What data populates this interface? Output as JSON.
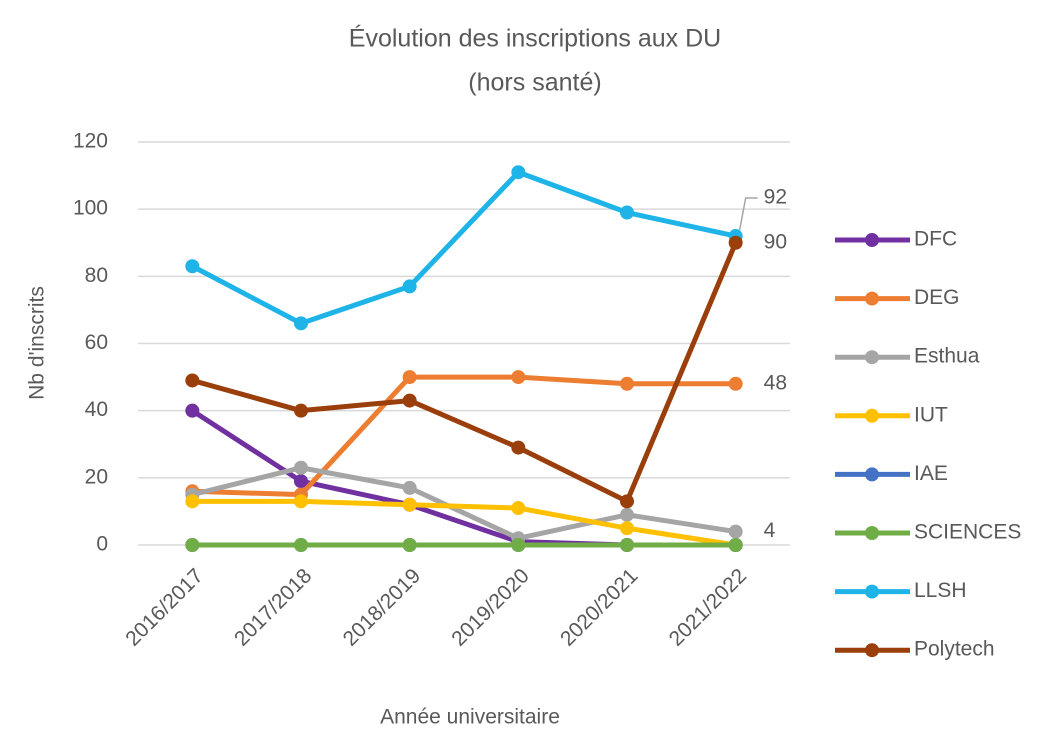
{
  "chart_data": {
    "type": "line",
    "title": "Évolution des inscriptions aux DU",
    "subtitle": "(hors santé)",
    "x_label": "Année universitaire",
    "y_label": "Nb d'inscrits",
    "categories": [
      "2016/2017",
      "2017/2018",
      "2018/2019",
      "2019/2020",
      "2020/2021",
      "2021/2022"
    ],
    "ylim": [
      0,
      120
    ],
    "yticks": [
      0,
      20,
      40,
      60,
      80,
      100,
      120
    ],
    "grid": true,
    "legend": "right",
    "series": [
      {
        "name": "DFC",
        "color": "#7030a0",
        "values": [
          40,
          19,
          12,
          1,
          0,
          0
        ]
      },
      {
        "name": "DEG",
        "color": "#ed7d31",
        "values": [
          16,
          15,
          50,
          50,
          48,
          48
        ],
        "label_last": true
      },
      {
        "name": "Esthua",
        "color": "#a5a5a5",
        "values": [
          15,
          23,
          17,
          2,
          9,
          4
        ],
        "label_last": true
      },
      {
        "name": "IUT",
        "color": "#ffc000",
        "values": [
          13,
          13,
          12,
          11,
          5,
          0
        ]
      },
      {
        "name": "IAE",
        "color": "#4472c4",
        "values": [
          0,
          0,
          0,
          0,
          0,
          0
        ]
      },
      {
        "name": "SCIENCES",
        "color": "#70ad47",
        "values": [
          0,
          0,
          0,
          0,
          0,
          0
        ]
      },
      {
        "name": "LLSH",
        "color": "#1fb4e8",
        "values": [
          83,
          66,
          77,
          111,
          99,
          92
        ],
        "label_last": true
      },
      {
        "name": "Polytech",
        "color": "#9a3e0c",
        "values": [
          49,
          40,
          43,
          29,
          13,
          90
        ],
        "label_last": true
      }
    ]
  }
}
